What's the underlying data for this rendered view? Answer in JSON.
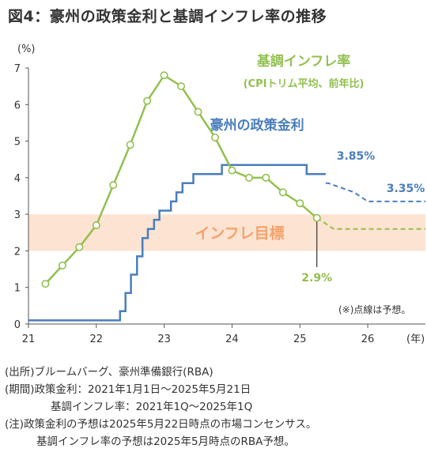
{
  "title": "図4：豪州の政策金利と基調インフレ率の推移",
  "chart_data": {
    "type": "line",
    "y_unit": "(%)",
    "x_unit": "(年)",
    "xlim": [
      21,
      26.85
    ],
    "ylim": [
      0,
      7
    ],
    "x_ticks": [
      "21",
      "22",
      "23",
      "24",
      "25",
      "26"
    ],
    "y_ticks": [
      "0",
      "1",
      "2",
      "3",
      "4",
      "5",
      "6",
      "7"
    ],
    "grid": false,
    "target_band": {
      "label": "インフレ目標",
      "y_range": [
        2,
        3
      ],
      "color": "#fde3d2",
      "label_color": "#f4a26a"
    },
    "series": [
      {
        "name": "豪州の政策金利",
        "color": "#4a7ebb",
        "style": "step",
        "x": [
          21.0,
          22.35,
          22.35,
          22.43,
          22.43,
          22.51,
          22.51,
          22.6,
          22.6,
          22.68,
          22.68,
          22.76,
          22.76,
          22.85,
          22.85,
          22.93,
          22.93,
          23.1,
          23.1,
          23.18,
          23.18,
          23.27,
          23.27,
          23.43,
          23.43,
          23.52,
          23.52,
          23.85,
          23.85,
          25.1,
          25.1,
          25.38
        ],
        "y": [
          0.1,
          0.1,
          0.35,
          0.35,
          0.85,
          0.85,
          1.35,
          1.35,
          1.85,
          1.85,
          2.35,
          2.35,
          2.6,
          2.6,
          2.85,
          2.85,
          3.1,
          3.1,
          3.35,
          3.35,
          3.6,
          3.6,
          3.85,
          3.85,
          4.1,
          4.1,
          4.1,
          4.1,
          4.35,
          4.35,
          4.1,
          4.1
        ],
        "forecast": {
          "x": [
            25.38,
            25.42,
            25.8,
            26.0,
            26.85
          ],
          "y": [
            3.85,
            3.85,
            3.6,
            3.35,
            3.35
          ]
        },
        "annotations": [
          {
            "text": "3.85%",
            "x": 25.42,
            "y": 3.85
          },
          {
            "text": "3.35%",
            "x": 26.85,
            "y": 3.35
          }
        ]
      },
      {
        "name": "基調インフレ率",
        "subtitle": "(CPIトリム平均、前年比)",
        "color": "#92c050",
        "style": "line-markers",
        "x": [
          21.25,
          21.5,
          21.75,
          22.0,
          22.25,
          22.5,
          22.75,
          23.0,
          23.25,
          23.5,
          23.75,
          24.0,
          24.25,
          24.5,
          24.75,
          25.0,
          25.25
        ],
        "y": [
          1.1,
          1.6,
          2.1,
          2.7,
          3.8,
          4.9,
          6.1,
          6.8,
          6.5,
          5.8,
          5.1,
          4.2,
          4.0,
          4.0,
          3.6,
          3.3,
          2.9
        ],
        "forecast": {
          "x": [
            25.25,
            25.5,
            26.0,
            26.85
          ],
          "y": [
            2.9,
            2.6,
            2.6,
            2.6
          ]
        },
        "annotations": [
          {
            "text": "2.9%",
            "x": 25.25,
            "y": 2.9
          }
        ]
      }
    ],
    "footnote": "(※)点線は予想。"
  },
  "notes": {
    "source": "(出所)ブルームバーグ、豪州準備銀行(RBA)",
    "period_line1": "(期間)政策金利：2021年1月1日～2025年5月21日",
    "period_line2": "基調インフレ率：2021年1Q～2025年1Q",
    "note_line1": "(注)政策金利の予想は2025年5月22日時点の市場コンセンサス。",
    "note_line2": "基調インフレ率の予想は2025年5月時点のRBA予想。"
  }
}
